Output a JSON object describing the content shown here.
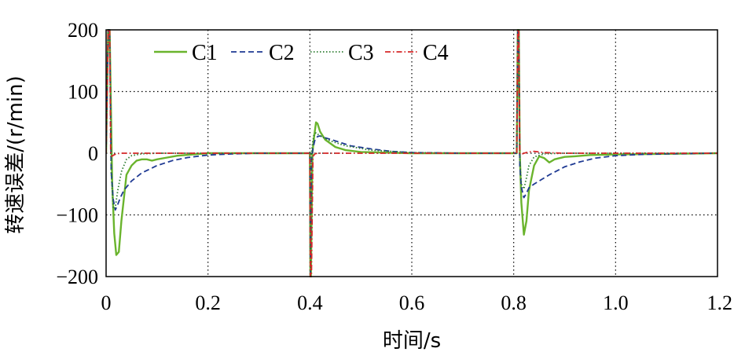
{
  "chart_data": {
    "type": "line",
    "xlabel": "时间/s",
    "ylabel": "转速误差/(r/min)",
    "xlim": [
      0,
      1.2
    ],
    "ylim": [
      -200,
      200
    ],
    "x_ticks": [
      "0",
      "0.2",
      "0.4",
      "0.6",
      "0.8",
      "1.0",
      "1.2"
    ],
    "y_ticks": [
      "200",
      "100",
      "0",
      "−100",
      "−200"
    ],
    "grid": true,
    "legend_position": "top-left",
    "series": [
      {
        "name": "C1",
        "color": "#6ab42d",
        "style": "solid",
        "x": [
          0,
          0.004,
          0.007,
          0.012,
          0.016,
          0.02,
          0.025,
          0.03,
          0.04,
          0.05,
          0.06,
          0.07,
          0.08,
          0.09,
          0.1,
          0.12,
          0.14,
          0.17,
          0.2,
          0.3,
          0.4,
          0.401,
          0.402,
          0.405,
          0.408,
          0.412,
          0.415,
          0.42,
          0.43,
          0.45,
          0.47,
          0.5,
          0.55,
          0.6,
          0.7,
          0.8,
          0.806,
          0.808,
          0.81,
          0.812,
          0.815,
          0.82,
          0.825,
          0.83,
          0.84,
          0.85,
          0.86,
          0.87,
          0.88,
          0.9,
          0.92,
          0.95,
          1.0,
          1.1,
          1.2
        ],
        "y": [
          0,
          200,
          200,
          -50,
          -130,
          -165,
          -160,
          -110,
          -35,
          -20,
          -12,
          -10,
          -10,
          -12,
          -10,
          -7,
          -4,
          -2,
          0,
          0,
          0,
          -200,
          -200,
          0,
          25,
          50,
          48,
          35,
          22,
          10,
          5,
          2,
          1,
          0,
          0,
          0,
          0,
          200,
          200,
          0,
          -80,
          -132,
          -110,
          -60,
          -20,
          -5,
          -8,
          -15,
          -10,
          -6,
          -5,
          -3,
          -2,
          -1,
          0
        ]
      },
      {
        "name": "C2",
        "color": "#1f3a93",
        "style": "dashed",
        "x": [
          0,
          0.004,
          0.007,
          0.01,
          0.014,
          0.018,
          0.022,
          0.028,
          0.035,
          0.05,
          0.07,
          0.1,
          0.13,
          0.16,
          0.2,
          0.25,
          0.3,
          0.4,
          0.401,
          0.403,
          0.406,
          0.41,
          0.415,
          0.42,
          0.43,
          0.45,
          0.48,
          0.52,
          0.56,
          0.6,
          0.7,
          0.8,
          0.806,
          0.808,
          0.81,
          0.812,
          0.815,
          0.82,
          0.825,
          0.83,
          0.84,
          0.85,
          0.87,
          0.9,
          0.93,
          0.96,
          1.0,
          1.05,
          1.1,
          1.2
        ],
        "y": [
          0,
          200,
          200,
          -30,
          -75,
          -92,
          -85,
          -72,
          -60,
          -45,
          -32,
          -20,
          -12,
          -7,
          -3,
          -1,
          0,
          0,
          -200,
          -12,
          8,
          22,
          27,
          28,
          25,
          20,
          12,
          7,
          3,
          1,
          0,
          0,
          0,
          200,
          200,
          -20,
          -55,
          -72,
          -65,
          -56,
          -50,
          -45,
          -35,
          -22,
          -14,
          -8,
          -4,
          -2,
          -1,
          0
        ]
      },
      {
        "name": "C3",
        "color": "#2e7d32",
        "style": "dotted",
        "x": [
          0,
          0.004,
          0.007,
          0.01,
          0.014,
          0.018,
          0.023,
          0.03,
          0.04,
          0.05,
          0.07,
          0.1,
          0.15,
          0.2,
          0.3,
          0.4,
          0.401,
          0.403,
          0.405,
          0.408,
          0.412,
          0.42,
          0.44,
          0.47,
          0.52,
          0.6,
          0.7,
          0.8,
          0.806,
          0.808,
          0.81,
          0.812,
          0.815,
          0.82,
          0.825,
          0.83,
          0.84,
          0.86,
          0.9,
          1.0,
          1.2
        ],
        "y": [
          0,
          200,
          200,
          -30,
          -90,
          -88,
          -60,
          -30,
          -10,
          -4,
          -1,
          0,
          0,
          0,
          0,
          0,
          -200,
          0,
          15,
          30,
          33,
          28,
          20,
          12,
          5,
          1,
          0,
          0,
          0,
          200,
          200,
          -10,
          -50,
          -58,
          -40,
          -20,
          -6,
          -1,
          0,
          0,
          0
        ]
      },
      {
        "name": "C4",
        "color": "#d62728",
        "style": "dashdot",
        "x": [
          0,
          0.004,
          0.007,
          0.009,
          0.011,
          0.015,
          0.02,
          0.03,
          0.1,
          0.3,
          0.4,
          0.401,
          0.403,
          0.406,
          0.41,
          0.415,
          0.43,
          0.6,
          0.8,
          0.806,
          0.808,
          0.81,
          0.812,
          0.815,
          0.82,
          0.83,
          0.84,
          0.86,
          0.9,
          1.0,
          1.2
        ],
        "y": [
          0,
          200,
          200,
          0,
          -5,
          -3,
          -1,
          0,
          0,
          0,
          0,
          -200,
          -200,
          -5,
          -1,
          0,
          0,
          0,
          0,
          0,
          200,
          200,
          0,
          -2,
          0,
          2,
          3,
          1,
          0,
          0,
          0
        ]
      }
    ]
  }
}
